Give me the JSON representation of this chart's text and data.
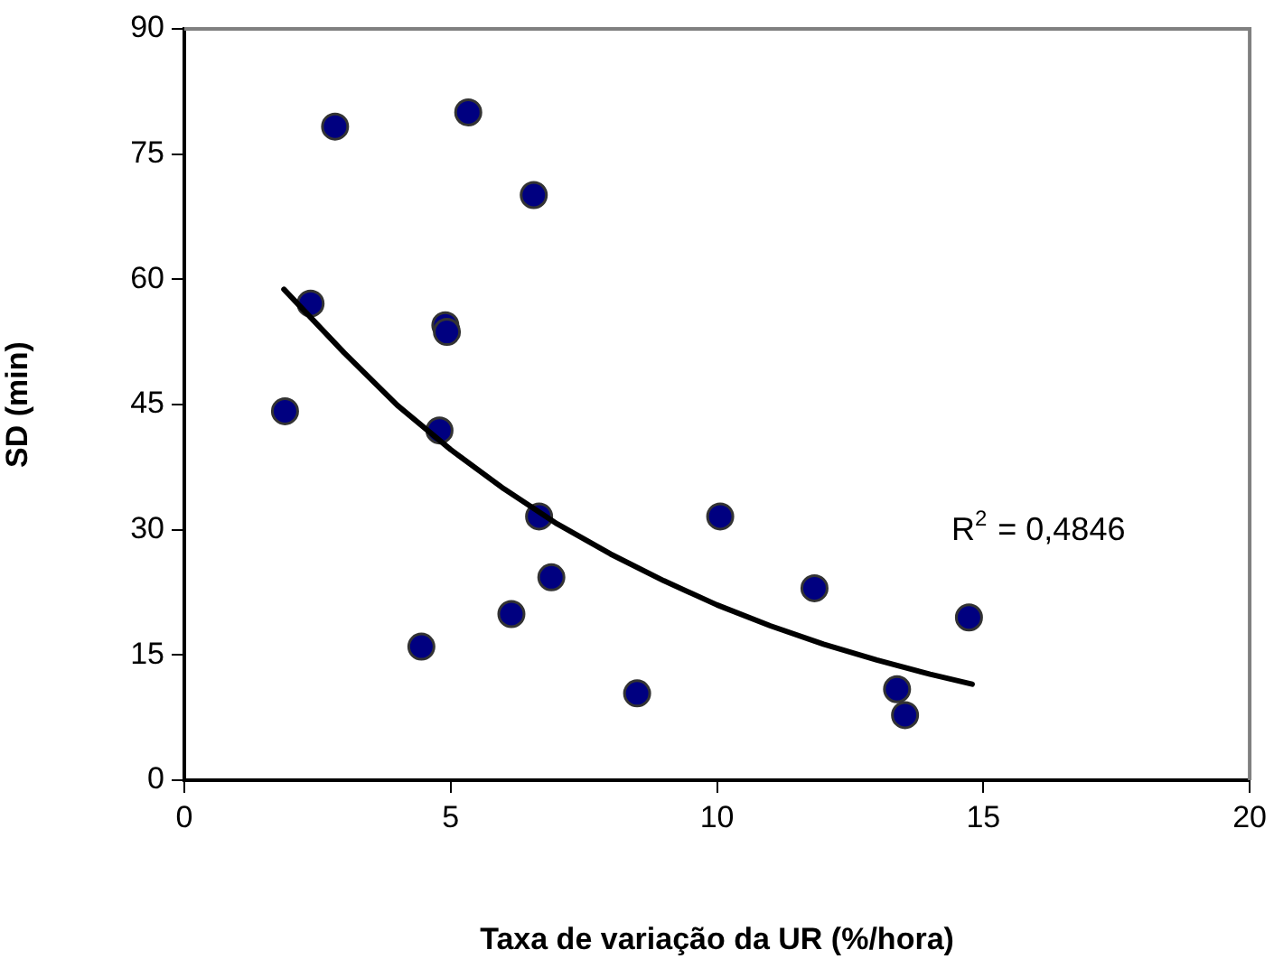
{
  "chart_data": {
    "type": "scatter",
    "xlabel": "Taxa de variação da UR (%/hora)",
    "ylabel": "SD (min)",
    "xlim": [
      0,
      20
    ],
    "xticks": [
      0,
      5,
      10,
      15,
      20
    ],
    "ylim": [
      0,
      90
    ],
    "yticks": [
      0,
      15,
      30,
      45,
      60,
      75,
      90
    ],
    "grid": false,
    "legend": false,
    "marker": "circle",
    "annotations": [
      "R$^{2}$ = 0,4846"
    ],
    "series": [
      {
        "color": "#000080",
        "x": [
          2.83,
          5.33,
          6.56,
          2.37,
          4.9,
          4.93,
          1.89,
          4.79,
          6.66,
          10.06,
          6.89,
          6.14,
          4.45,
          8.5,
          11.83,
          14.73,
          13.38,
          13.53
        ],
        "values": [
          78.3,
          80.0,
          70.1,
          57.1,
          54.5,
          53.7,
          44.2,
          41.9,
          31.6,
          31.6,
          24.3,
          19.9,
          16.0,
          10.4,
          23.0,
          19.5,
          10.9,
          7.8
        ]
      },
      {
        "type": "line",
        "color": "#000000",
        "marker": "none",
        "x": [
          1.87,
          3,
          4,
          5,
          6,
          7,
          8,
          9,
          10,
          11,
          12,
          13,
          14,
          14.79
        ],
        "values": [
          58.8,
          51.2,
          44.9,
          39.6,
          34.9,
          30.7,
          27.1,
          23.9,
          21.0,
          18.5,
          16.3,
          14.4,
          12.7,
          11.5
        ]
      }
    ]
  }
}
